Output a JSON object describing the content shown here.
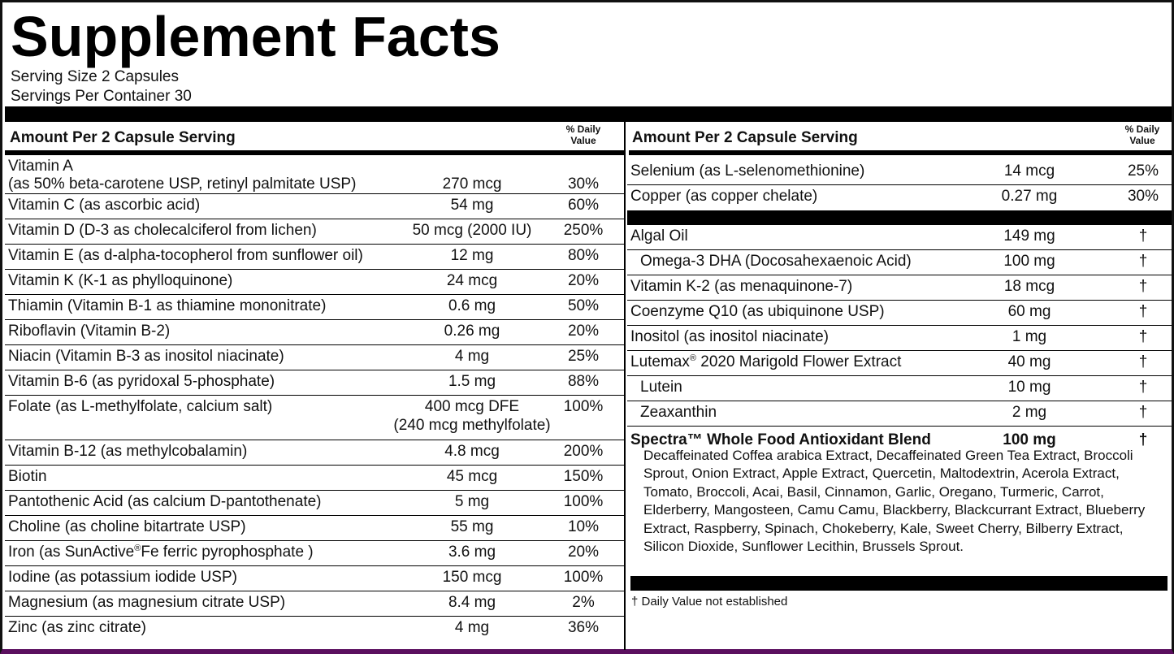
{
  "title": "Supplement Facts",
  "serving_size": "Serving Size 2 Capsules",
  "servings_per_container": "Servings Per Container 30",
  "left": {
    "header": "Amount Per 2 Capsule Serving",
    "dv_line1": "% Daily",
    "dv_line2": "Value",
    "vitamin_a": {
      "name": "Vitamin A",
      "name2": "(as 50% beta-carotene USP, retinyl palmitate USP)",
      "amount": "270 mcg",
      "dv": "30%"
    },
    "rows": [
      {
        "name": "Vitamin C (as ascorbic acid)",
        "amount": "54 mg",
        "dv": "60%"
      },
      {
        "name": "Vitamin D (D-3 as cholecalciferol from lichen)",
        "amount": "50 mcg (2000 IU)",
        "dv": "250%"
      },
      {
        "name": "Vitamin E (as d-alpha-tocopherol from sunflower oil)",
        "amount": "12 mg",
        "dv": "80%"
      },
      {
        "name": "Vitamin K (K-1 as phylloquinone)",
        "amount": "24 mcg",
        "dv": "20%"
      },
      {
        "name": "Thiamin (Vitamin B-1 as thiamine mononitrate)",
        "amount": "0.6 mg",
        "dv": "50%"
      },
      {
        "name": "Riboflavin (Vitamin B-2)",
        "amount": "0.26 mg",
        "dv": "20%"
      },
      {
        "name": "Niacin (Vitamin B-3 as inositol niacinate)",
        "amount": "4 mg",
        "dv": "25%"
      },
      {
        "name": "Vitamin B-6 (as pyridoxal 5-phosphate)",
        "amount": "1.5 mg",
        "dv": "88%"
      }
    ],
    "folate": {
      "name": "Folate (as L-methylfolate, calcium salt)",
      "amount": "400 mcg DFE",
      "amount2": "(240 mcg methylfolate)",
      "dv": "100%"
    },
    "rows2": [
      {
        "name": "Vitamin B-12 (as methylcobalamin)",
        "amount": "4.8 mcg",
        "dv": "200%"
      },
      {
        "name": "Biotin",
        "amount": "45 mcg",
        "dv": "150%"
      },
      {
        "name": "Pantothenic Acid (as calcium D-pantothenate)",
        "amount": "5 mg",
        "dv": "100%"
      },
      {
        "name": "Choline (as choline bitartrate USP)",
        "amount": "55 mg",
        "dv": "10%"
      }
    ],
    "iron": {
      "name_a": "Iron (as SunActive",
      "reg": "®",
      "name_b": "Fe ferric pyrophosphate )",
      "amount": "3.6 mg",
      "dv": "20%"
    },
    "rows3": [
      {
        "name": "Iodine (as potassium iodide USP)",
        "amount": "150 mcg",
        "dv": "100%"
      },
      {
        "name": "Magnesium (as magnesium citrate USP)",
        "amount": "8.4 mg",
        "dv": "2%"
      },
      {
        "name": "Zinc (as zinc citrate)",
        "amount": "4 mg",
        "dv": "36%"
      }
    ]
  },
  "right": {
    "header": "Amount Per 2 Capsule Serving",
    "dv_line1": "% Daily",
    "dv_line2": "Value",
    "rows": [
      {
        "name": "Selenium (as L-selenomethionine)",
        "amount": "14 mcg",
        "dv": "25%"
      },
      {
        "name": "Copper (as copper chelate)",
        "amount": "0.27 mg",
        "dv": "30%"
      }
    ],
    "rows2": [
      {
        "name": "Algal Oil",
        "amount": "149 mg",
        "dv": "†"
      },
      {
        "name": "Omega-3 DHA (Docosahexaenoic Acid)",
        "amount": "100 mg",
        "dv": "†"
      },
      {
        "name": "Vitamin K-2 (as menaquinone-7)",
        "amount": "18 mcg",
        "dv": "†"
      },
      {
        "name": "Coenzyme Q10 (as ubiquinone USP)",
        "amount": "60 mg",
        "dv": "†"
      },
      {
        "name": "Inositol (as inositol niacinate)",
        "amount": "1 mg",
        "dv": "†"
      }
    ],
    "lutemax": {
      "name_a": "Lutemax",
      "reg": "®",
      "name_b": " 2020 Marigold Flower Extract",
      "amount": "40 mg",
      "dv": "†"
    },
    "rows3": [
      {
        "name": "Lutein",
        "amount": "10 mg",
        "dv": "†"
      },
      {
        "name": "Zeaxanthin",
        "amount": "2 mg",
        "dv": "†"
      }
    ],
    "blend": {
      "name": "Spectra™ Whole Food Antioxidant Blend",
      "amount": "100 mg",
      "dv": "†"
    },
    "blend_ingredients": "Decaffeinated Coffea arabica Extract, Decaffeinated Green Tea Extract, Broccoli Sprout, Onion Extract, Apple Extract, Quercetin, Maltodextrin, Acerola Extract, Tomato, Broccoli, Acai, Basil, Cinnamon, Garlic, Oregano, Turmeric, Carrot, Elderberry, Mangosteen, Camu Camu, Blackberry, Blackcurrant Extract, Blueberry Extract, Raspberry, Spinach, Chokeberry, Kale, Sweet Cherry, Bilberry Extract, Silicon Dioxide, Sunflower Lecithin, Brussels Sprout.",
    "footnote": "† Daily Value not established"
  }
}
